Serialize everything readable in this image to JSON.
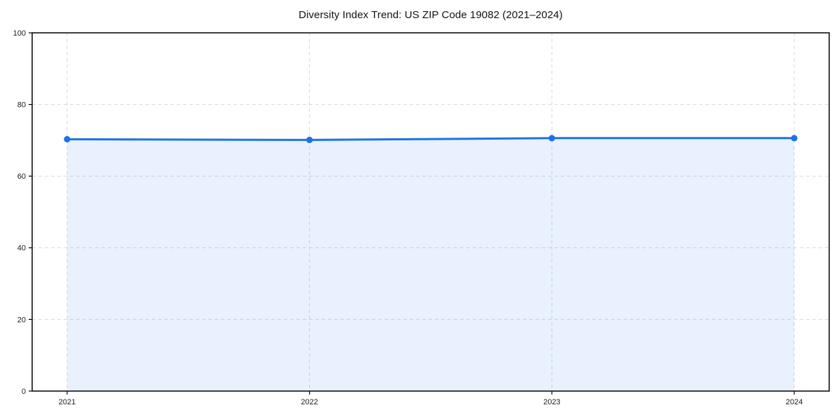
{
  "chart_data": {
    "type": "area",
    "title": "Diversity Index Trend: US ZIP Code 19082 (2021–2024)",
    "x_labels": [
      "2021",
      "2022",
      "2023",
      "2024"
    ],
    "series": [
      {
        "name": "Diversity Index",
        "values": [
          70.3,
          70.1,
          70.6,
          70.6
        ]
      }
    ],
    "xlabel": "",
    "ylabel": "",
    "ylim": [
      0,
      100
    ],
    "ytick_step": 20,
    "grid": true,
    "legend_position": "none",
    "colors": {
      "line": "#1a73e8",
      "marker": "#1a73e8",
      "area_fill": "rgba(26,115,232,0.10)",
      "grid": "#d8d8d8",
      "spine": "#000000",
      "tick_text": "#1a1a1a"
    }
  }
}
